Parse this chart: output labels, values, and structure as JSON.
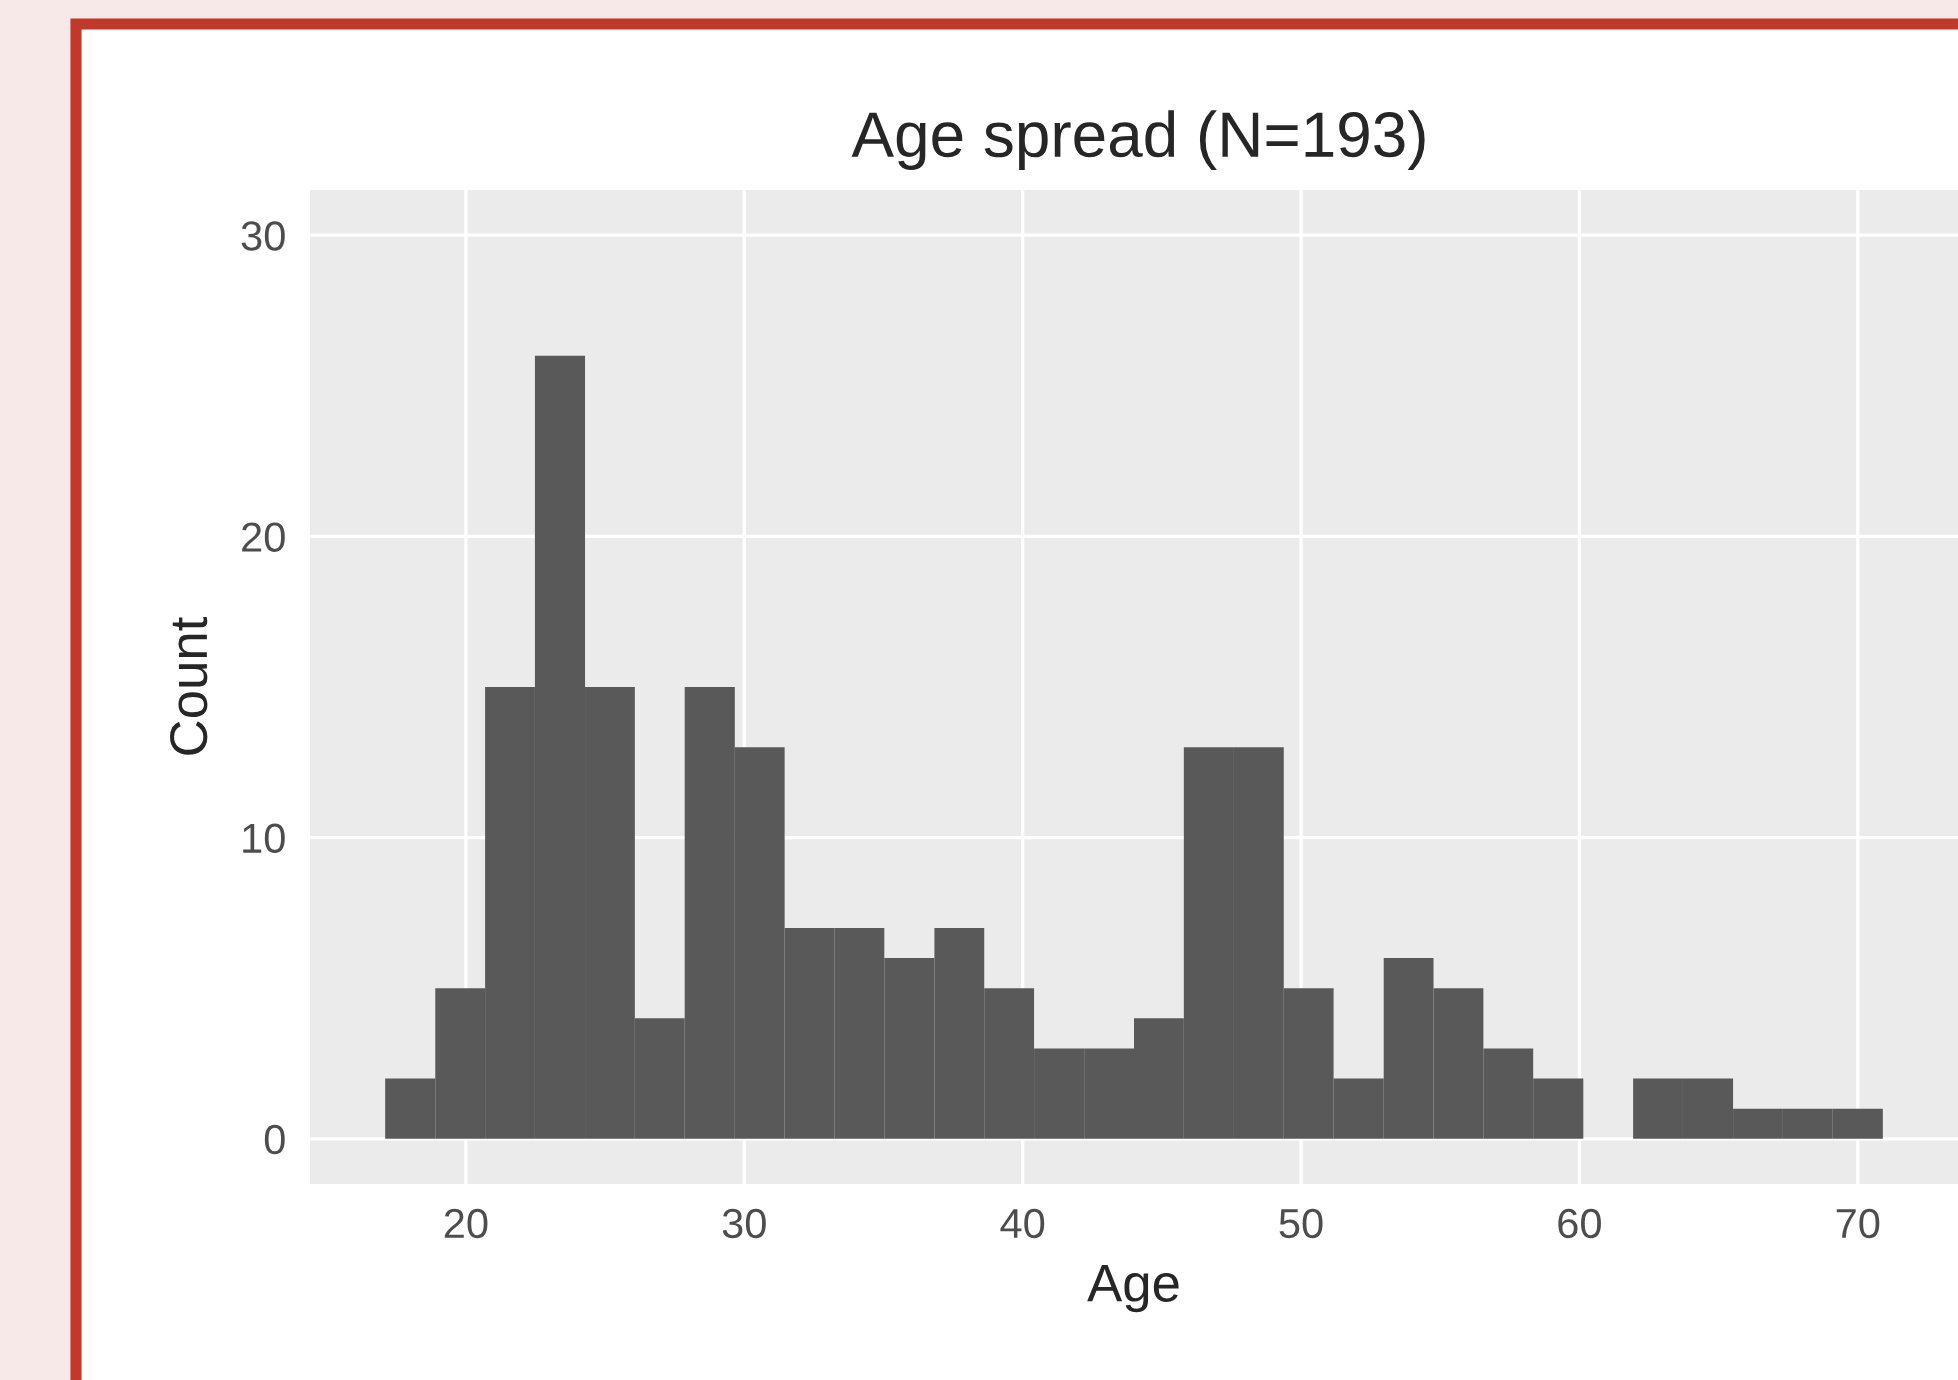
{
  "chart_data": {
    "type": "histogram",
    "title": "Age spread (N=193)",
    "xlabel": "Age",
    "ylabel": "Count",
    "bins": [
      17.1,
      18.9,
      20.69,
      22.48,
      24.28,
      26.07,
      27.86,
      29.66,
      31.45,
      33.24,
      35.03,
      36.83,
      38.62,
      40.41,
      42.21,
      44.0,
      45.79,
      47.59,
      49.38,
      51.17,
      52.97,
      54.76,
      56.55,
      58.34,
      60.14,
      61.93,
      63.72,
      65.52,
      67.31,
      69.1,
      70.9
    ],
    "values": [
      2,
      5,
      15,
      26,
      15,
      4,
      15,
      13,
      7,
      7,
      6,
      7,
      5,
      3,
      3,
      4,
      13,
      13,
      5,
      2,
      6,
      5,
      3,
      2,
      0,
      2,
      2,
      1,
      1,
      1
    ],
    "color": "#595959",
    "xlim": [
      14.4,
      73.6
    ],
    "xticks": [
      20,
      30,
      40,
      50,
      60,
      70
    ],
    "ylim": [
      -1.5,
      31.5
    ],
    "yticks": [
      0,
      10,
      20,
      30
    ],
    "grid": true
  }
}
